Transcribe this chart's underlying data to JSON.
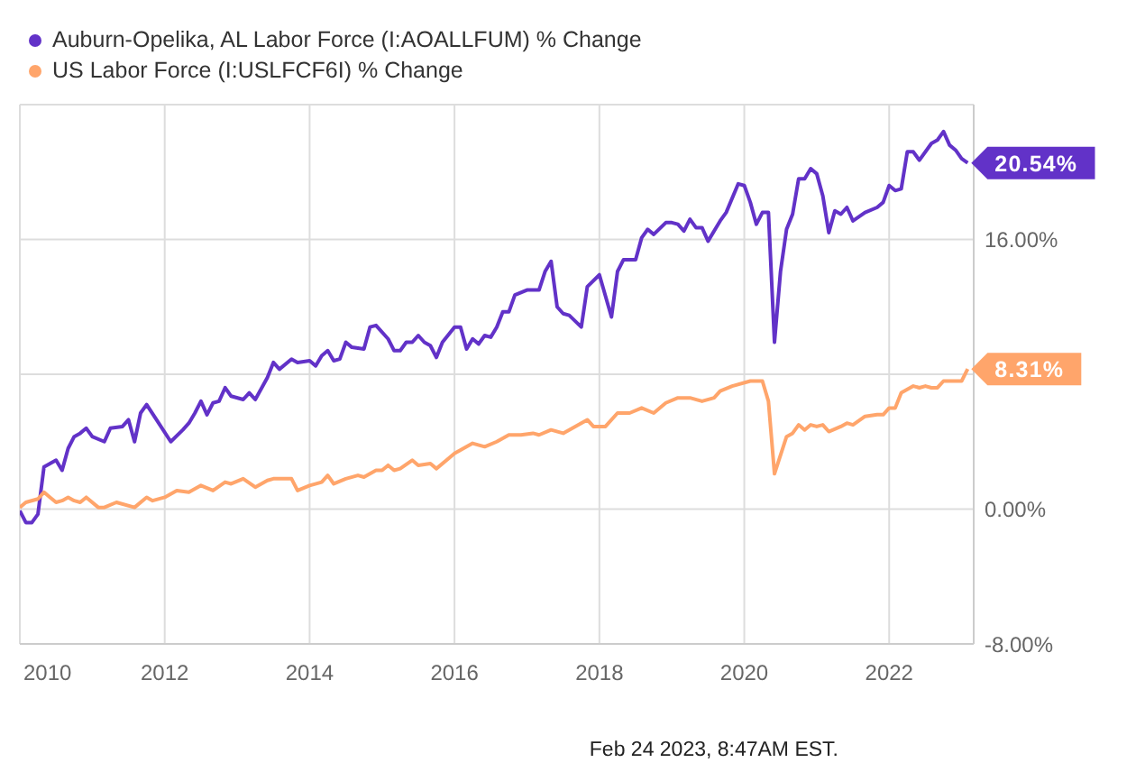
{
  "chart_data": {
    "type": "line",
    "legend": "top left",
    "grid": true,
    "marker": "none",
    "line_style": "solid",
    "xlim": [
      "2010-01",
      "2023-03"
    ],
    "xticks": [
      "2010",
      "2012",
      "2014",
      "2016",
      "2018",
      "2020",
      "2022"
    ],
    "ylim": [
      -8,
      24
    ],
    "yticks": [
      {
        "value": -8,
        "label": "-8.00%"
      },
      {
        "value": 0,
        "label": "0.00%"
      },
      {
        "value": 8,
        "label": null
      },
      {
        "value": 16,
        "label": "16.00%"
      },
      {
        "value": 24,
        "label": null
      }
    ],
    "annotations": [
      {
        "text": "20.54%",
        "x": "2023-02",
        "y": 20.54
      },
      {
        "text": "8.31%",
        "x": "2023-02",
        "y": 8.31
      },
      "Feb 24 2023, 8:47AM EST."
    ],
    "series": [
      {
        "name": "Auburn-Opelika, AL Labor Force (I:AOALLFUM) % Change",
        "color": "#6232c8",
        "x": [
          "2010-01",
          "2010-02",
          "2010-03",
          "2010-04",
          "2010-05",
          "2010-06",
          "2010-07",
          "2010-08",
          "2010-09",
          "2010-10",
          "2010-11",
          "2010-12",
          "2011-01",
          "2011-03",
          "2011-04",
          "2011-06",
          "2011-07",
          "2011-08",
          "2011-09",
          "2011-10",
          "2011-12",
          "2012-02",
          "2012-04",
          "2012-05",
          "2012-06",
          "2012-07",
          "2012-08",
          "2012-09",
          "2012-10",
          "2012-11",
          "2012-12",
          "2013-02",
          "2013-03",
          "2013-04",
          "2013-06",
          "2013-07",
          "2013-08",
          "2013-10",
          "2013-11",
          "2014-01",
          "2014-02",
          "2014-03",
          "2014-04",
          "2014-05",
          "2014-06",
          "2014-07",
          "2014-08",
          "2014-10",
          "2014-11",
          "2014-12",
          "2015-02",
          "2015-03",
          "2015-04",
          "2015-05",
          "2015-06",
          "2015-07",
          "2015-08",
          "2015-09",
          "2015-10",
          "2015-11",
          "2016-01",
          "2016-02",
          "2016-03",
          "2016-04",
          "2016-05",
          "2016-06",
          "2016-07",
          "2016-08",
          "2016-09",
          "2016-10",
          "2016-11",
          "2017-01",
          "2017-03",
          "2017-04",
          "2017-05",
          "2017-06",
          "2017-07",
          "2017-08",
          "2017-10",
          "2017-11",
          "2018-01",
          "2018-03",
          "2018-04",
          "2018-05",
          "2018-07",
          "2018-08",
          "2018-09",
          "2018-10",
          "2018-12",
          "2019-01",
          "2019-02",
          "2019-03",
          "2019-04",
          "2019-05",
          "2019-06",
          "2019-07",
          "2019-09",
          "2019-10",
          "2019-12",
          "2020-01",
          "2020-02",
          "2020-03",
          "2020-04",
          "2020-05",
          "2020-06",
          "2020-07",
          "2020-08",
          "2020-09",
          "2020-10",
          "2020-11",
          "2020-12",
          "2021-01",
          "2021-02",
          "2021-03",
          "2021-04",
          "2021-05",
          "2021-06",
          "2021-07",
          "2021-09",
          "2021-11",
          "2021-12",
          "2022-01",
          "2022-02",
          "2022-03",
          "2022-04",
          "2022-05",
          "2022-06",
          "2022-08",
          "2022-09",
          "2022-10",
          "2022-11",
          "2022-12",
          "2023-01",
          "2023-02"
        ],
        "values": [
          -0.1,
          -0.8,
          -0.8,
          -0.3,
          2.5,
          2.7,
          2.9,
          2.3,
          3.6,
          4.3,
          4.5,
          4.8,
          4.3,
          4.0,
          4.8,
          4.9,
          5.3,
          4.0,
          5.7,
          6.2,
          5.1,
          4.0,
          4.7,
          5.1,
          5.7,
          6.4,
          5.6,
          6.3,
          6.4,
          7.2,
          6.7,
          6.5,
          6.9,
          6.5,
          7.8,
          8.7,
          8.3,
          8.9,
          8.7,
          8.8,
          8.5,
          9.1,
          9.4,
          8.8,
          8.9,
          9.9,
          9.6,
          9.5,
          10.8,
          10.9,
          10.1,
          9.4,
          9.4,
          9.9,
          9.9,
          10.3,
          9.9,
          9.7,
          9.0,
          9.9,
          10.8,
          10.8,
          9.5,
          10.1,
          9.8,
          10.3,
          10.2,
          10.8,
          11.7,
          11.7,
          12.7,
          13.0,
          13.0,
          14.1,
          14.7,
          12.0,
          11.6,
          11.5,
          10.8,
          13.2,
          13.9,
          11.4,
          14.1,
          14.8,
          14.8,
          16.1,
          16.6,
          16.3,
          17.0,
          17.0,
          16.9,
          16.5,
          17.2,
          16.7,
          16.7,
          15.9,
          17.1,
          17.6,
          19.3,
          19.2,
          18.2,
          16.9,
          17.6,
          17.6,
          9.9,
          14.1,
          16.6,
          17.5,
          19.6,
          19.6,
          20.2,
          19.9,
          18.6,
          16.4,
          17.7,
          17.5,
          17.9,
          17.1,
          17.6,
          17.9,
          18.2,
          19.2,
          18.9,
          19.0,
          21.2,
          21.2,
          20.7,
          21.7,
          21.9,
          22.4,
          21.6,
          21.3,
          20.8,
          20.54
        ]
      },
      {
        "name": "US Labor Force (I:USLFCF6I) % Change",
        "color": "#ffa56b",
        "x": [
          "2010-01",
          "2010-02",
          "2010-04",
          "2010-05",
          "2010-06",
          "2010-07",
          "2010-08",
          "2010-09",
          "2010-10",
          "2010-11",
          "2010-12",
          "2011-02",
          "2011-03",
          "2011-05",
          "2011-08",
          "2011-10",
          "2011-11",
          "2012-01",
          "2012-03",
          "2012-05",
          "2012-07",
          "2012-09",
          "2012-11",
          "2012-12",
          "2013-02",
          "2013-04",
          "2013-06",
          "2013-07",
          "2013-10",
          "2013-11",
          "2014-01",
          "2014-03",
          "2014-04",
          "2014-05",
          "2014-07",
          "2014-09",
          "2014-10",
          "2014-12",
          "2015-01",
          "2015-02",
          "2015-03",
          "2015-04",
          "2015-06",
          "2015-07",
          "2015-09",
          "2015-10",
          "2016-01",
          "2016-02",
          "2016-04",
          "2016-06",
          "2016-08",
          "2016-10",
          "2016-12",
          "2017-02",
          "2017-03",
          "2017-05",
          "2017-07",
          "2017-09",
          "2017-11",
          "2017-12",
          "2018-02",
          "2018-04",
          "2018-06",
          "2018-08",
          "2018-10",
          "2018-12",
          "2019-02",
          "2019-04",
          "2019-06",
          "2019-08",
          "2019-09",
          "2019-11",
          "2020-02",
          "2020-04",
          "2020-05",
          "2020-06",
          "2020-08",
          "2020-09",
          "2020-10",
          "2020-11",
          "2020-12",
          "2021-01",
          "2021-02",
          "2021-03",
          "2021-05",
          "2021-06",
          "2021-07",
          "2021-09",
          "2021-11",
          "2021-12",
          "2022-01",
          "2022-02",
          "2022-03",
          "2022-05",
          "2022-06",
          "2022-07",
          "2022-08",
          "2022-09",
          "2022-10",
          "2022-12",
          "2023-01",
          "2023-02"
        ],
        "values": [
          0.1,
          0.4,
          0.6,
          1.0,
          0.7,
          0.4,
          0.5,
          0.7,
          0.5,
          0.4,
          0.7,
          0.1,
          0.1,
          0.4,
          0.1,
          0.7,
          0.5,
          0.7,
          1.1,
          1.0,
          1.4,
          1.1,
          1.6,
          1.5,
          1.8,
          1.3,
          1.7,
          1.8,
          1.8,
          1.1,
          1.4,
          1.6,
          2.0,
          1.5,
          1.8,
          2.0,
          1.9,
          2.3,
          2.3,
          2.6,
          2.3,
          2.4,
          2.9,
          2.6,
          2.7,
          2.4,
          3.3,
          3.5,
          3.9,
          3.7,
          4.0,
          4.4,
          4.4,
          4.5,
          4.4,
          4.7,
          4.5,
          4.9,
          5.3,
          4.9,
          4.9,
          5.7,
          5.7,
          6.0,
          5.7,
          6.3,
          6.6,
          6.6,
          6.4,
          6.6,
          7.0,
          7.3,
          7.6,
          7.6,
          6.4,
          2.1,
          4.3,
          4.5,
          5.0,
          4.7,
          5.0,
          4.9,
          5.0,
          4.6,
          4.9,
          5.1,
          5.0,
          5.5,
          5.6,
          5.6,
          6.0,
          6.0,
          6.9,
          7.3,
          7.2,
          7.3,
          7.2,
          7.2,
          7.6,
          7.6,
          7.6,
          8.31
        ]
      }
    ]
  }
}
